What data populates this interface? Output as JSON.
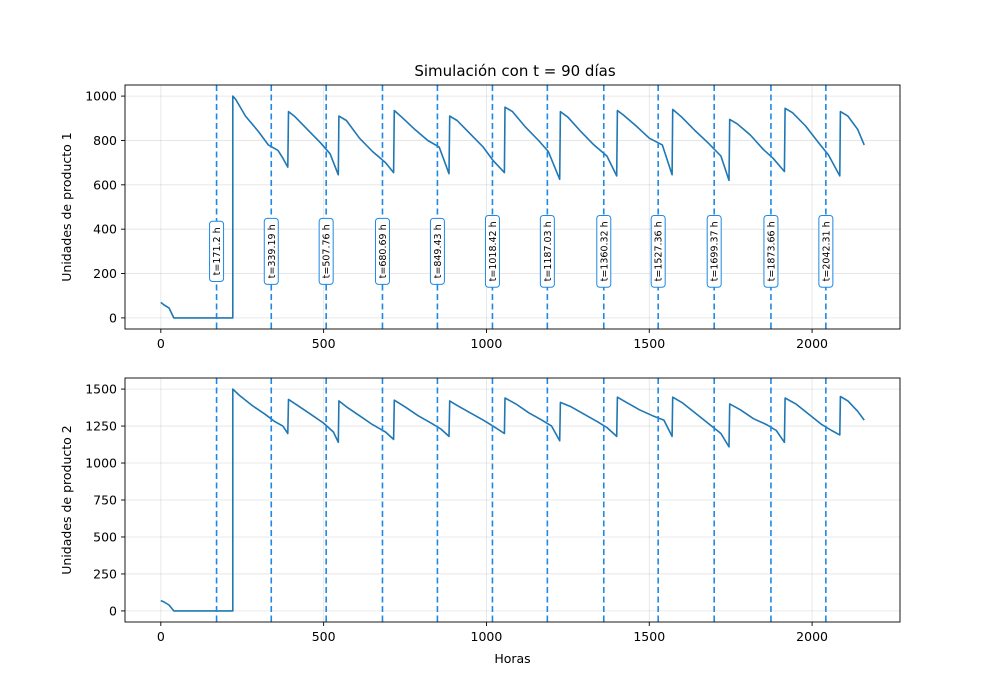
{
  "chart_data": [
    {
      "type": "line",
      "title": "Simulación con t = 90 días",
      "xlabel": "",
      "ylabel": "Unidades de producto 1",
      "xlim": [
        -110,
        2270
      ],
      "ylim": [
        -50,
        1050
      ],
      "xticks": [
        0,
        500,
        1000,
        1500,
        2000
      ],
      "yticks": [
        0,
        200,
        400,
        600,
        800,
        1000
      ],
      "grid": true,
      "line_color": "#1f77b4",
      "vline_color": "#1e88e5",
      "series": [
        {
          "x": [
            0,
            10,
            25,
            40,
            90,
            150,
            221,
            221,
            230,
            260,
            300,
            330,
            360,
            375,
            390,
            392,
            410,
            450,
            490,
            520,
            545,
            547,
            570,
            610,
            650,
            690,
            715,
            717,
            740,
            780,
            820,
            855,
            885,
            887,
            910,
            950,
            990,
            1020,
            1055,
            1057,
            1080,
            1120,
            1160,
            1190,
            1225,
            1227,
            1250,
            1290,
            1330,
            1370,
            1400,
            1402,
            1420,
            1460,
            1500,
            1540,
            1570,
            1572,
            1600,
            1640,
            1680,
            1720,
            1745,
            1747,
            1770,
            1810,
            1850,
            1880,
            1915,
            1917,
            1940,
            1980,
            2020,
            2050,
            2085,
            2087,
            2110,
            2140,
            2160
          ],
          "y": [
            70,
            58,
            45,
            0,
            0,
            0,
            0,
            1000,
            985,
            910,
            840,
            780,
            755,
            720,
            680,
            930,
            910,
            850,
            790,
            740,
            645,
            910,
            890,
            810,
            750,
            700,
            655,
            935,
            905,
            850,
            800,
            770,
            650,
            910,
            890,
            830,
            770,
            710,
            655,
            950,
            930,
            860,
            800,
            750,
            625,
            930,
            905,
            840,
            780,
            730,
            640,
            935,
            915,
            865,
            810,
            780,
            645,
            940,
            905,
            845,
            790,
            730,
            620,
            895,
            875,
            825,
            760,
            720,
            660,
            945,
            925,
            865,
            790,
            735,
            640,
            930,
            910,
            850,
            780
          ]
        }
      ],
      "vlines": [
        171.2,
        339.19,
        507.76,
        680.69,
        849.43,
        1018.42,
        1187.03,
        1360.32,
        1527.36,
        1699.37,
        1873.66,
        2042.31
      ],
      "annotations": [
        "t=171.2 h",
        "t=339.19 h",
        "t=507.76 h",
        "t=680.69 h",
        "t=849.43 h",
        "t=1018.42 h",
        "t=1187.03 h",
        "t=1360.32 h",
        "t=1527.36 h",
        "t=1699.37 h",
        "t=1873.66 h",
        "t=2042.31 h"
      ],
      "annotation_y": 300
    },
    {
      "type": "line",
      "title": "",
      "xlabel": "Horas",
      "ylabel": "Unidades de producto 2",
      "xlim": [
        -110,
        2270
      ],
      "ylim": [
        -75,
        1575
      ],
      "xticks": [
        0,
        500,
        1000,
        1500,
        2000
      ],
      "yticks": [
        0,
        250,
        500,
        750,
        1000,
        1250,
        1500
      ],
      "grid": true,
      "line_color": "#1f77b4",
      "vline_color": "#1e88e5",
      "series": [
        {
          "x": [
            0,
            10,
            25,
            40,
            90,
            150,
            221,
            221,
            240,
            280,
            320,
            350,
            375,
            390,
            392,
            420,
            460,
            500,
            530,
            545,
            547,
            570,
            610,
            650,
            690,
            715,
            717,
            750,
            790,
            830,
            860,
            885,
            887,
            910,
            950,
            990,
            1020,
            1055,
            1057,
            1090,
            1130,
            1170,
            1200,
            1225,
            1227,
            1260,
            1300,
            1340,
            1370,
            1400,
            1402,
            1430,
            1470,
            1510,
            1545,
            1570,
            1572,
            1600,
            1640,
            1680,
            1720,
            1745,
            1747,
            1780,
            1820,
            1860,
            1890,
            1915,
            1917,
            1950,
            1990,
            2030,
            2060,
            2085,
            2087,
            2110,
            2140,
            2160
          ],
          "y": [
            70,
            60,
            40,
            0,
            0,
            0,
            0,
            1500,
            1460,
            1390,
            1330,
            1280,
            1250,
            1200,
            1430,
            1390,
            1330,
            1270,
            1210,
            1140,
            1420,
            1380,
            1320,
            1260,
            1210,
            1160,
            1425,
            1380,
            1320,
            1270,
            1230,
            1180,
            1420,
            1390,
            1340,
            1290,
            1250,
            1200,
            1440,
            1400,
            1340,
            1290,
            1250,
            1150,
            1410,
            1380,
            1330,
            1280,
            1240,
            1180,
            1445,
            1410,
            1360,
            1320,
            1290,
            1180,
            1445,
            1410,
            1340,
            1270,
            1200,
            1110,
            1400,
            1360,
            1300,
            1260,
            1220,
            1140,
            1440,
            1400,
            1330,
            1260,
            1220,
            1190,
            1450,
            1420,
            1350,
            1290
          ]
        }
      ],
      "vlines": [
        171.2,
        339.19,
        507.76,
        680.69,
        849.43,
        1018.42,
        1187.03,
        1360.32,
        1527.36,
        1699.37,
        1873.66,
        2042.31
      ],
      "annotations": [],
      "annotation_y": null
    }
  ]
}
